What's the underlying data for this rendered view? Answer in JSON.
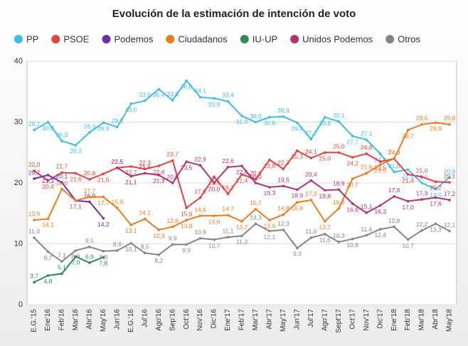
{
  "chart_data": {
    "type": "line",
    "title": "Evolución de la estimación de intención de voto",
    "categories": [
      "E.G.'15",
      "Ene'16",
      "Feb'16",
      "Mar'16",
      "Abr'16",
      "May'16",
      "Jun'16",
      "E.G.'16",
      "Jul'16",
      "Ago'16",
      "Sep'16",
      "Oct'16",
      "Nov'16",
      "Dic'16",
      "Ene'17",
      "Feb'17",
      "Mar'17",
      "Abr'17",
      "May'17",
      "Jun'17",
      "Jul'17",
      "Ago'17",
      "Sept'17",
      "Oct'17",
      "Nov'17",
      "Dic'17",
      "Ene'18",
      "Feb'18",
      "Mar'18",
      "Abr'18",
      "May'18"
    ],
    "ylim": [
      0,
      40
    ],
    "yticks": [
      0,
      10,
      20,
      30,
      40
    ],
    "grid": true,
    "series": [
      {
        "name": "PP",
        "color": "#3dbde9",
        "values": [
          28.7,
          30.0,
          26.9,
          26.2,
          28.3,
          29.9,
          29.2,
          33.0,
          33.5,
          35.4,
          33.6,
          36.8,
          34.1,
          33.9,
          33.4,
          31.0,
          30.0,
          30.8,
          30.9,
          29.9,
          27.2,
          30.8,
          30.1,
          27.7,
          27.1,
          24.8,
          21.8,
          22.2,
          20.0,
          19.0,
          20.9
        ],
        "value_labels": [
          "28,7",
          "30,0",
          "26,9",
          "26,2",
          "28,3",
          "29,9",
          "29,2",
          "33,0",
          "33,5",
          "35,4",
          "33,6",
          "36,8",
          "34,1",
          "33,9",
          "33,4",
          "31,0",
          "30,0",
          "30,8",
          "30,9",
          "29,9",
          "27,2",
          "30,8",
          "30,1",
          "27,7",
          "27,1",
          "24,8",
          "21,8",
          "22,2",
          "20,0",
          "19,0",
          "20,9"
        ]
      },
      {
        "name": "PSOE",
        "color": "#e8403c",
        "values": [
          22.0,
          20.4,
          21.7,
          21.6,
          20.6,
          21.5,
          22.5,
          22.7,
          22.3,
          22.8,
          23.7,
          15.9,
          17.6,
          21.0,
          18.2,
          21.4,
          20.6,
          23.8,
          22.3,
          25.3,
          24.1,
          25.0,
          25.0,
          24.2,
          24.8,
          23.5,
          24.0,
          21.4,
          21.0,
          20.2,
          20.1
        ],
        "value_labels": [
          "22,0",
          "20,4",
          "21,7",
          "21,6",
          "20,6",
          "21,5",
          "22,5",
          "22,7",
          "22,3",
          "22,8",
          "23,7",
          "15,9",
          "17,6",
          "21,0",
          "18,2",
          "21,4",
          "20,6",
          "23,8",
          "22,3",
          "25,3",
          "24,1",
          "25,0",
          "25,0",
          "24,2",
          "24,8",
          "23,5",
          "24,0",
          "21,4",
          "21,0",
          "20,2",
          "20,1"
        ]
      },
      {
        "name": "Podemos",
        "color": "#6b2fa8",
        "values": [
          20.7,
          21.3,
          20.1,
          17.1,
          16.9,
          14.2,
          null,
          null,
          null,
          null,
          null,
          null,
          null,
          null,
          null,
          null,
          null,
          null,
          null,
          null,
          null,
          null,
          null,
          null,
          null,
          null,
          null,
          null,
          null,
          null,
          null
        ],
        "value_labels": [
          "20,7",
          "21,3",
          "20,1",
          "17,1",
          "16,9",
          "14,2",
          null,
          null,
          null,
          null,
          null,
          null,
          null,
          null,
          null,
          null,
          null,
          null,
          null,
          null,
          null,
          null,
          null,
          null,
          null,
          null,
          null,
          null,
          null,
          null,
          null
        ]
      },
      {
        "name": "Ciudadanos",
        "color": "#f07b1c",
        "values": [
          13.9,
          14.1,
          19.0,
          17.1,
          17.7,
          17.7,
          15.9,
          13.1,
          14.1,
          12.3,
          12.8,
          13.9,
          14.6,
          14.6,
          14.7,
          13.7,
          15.7,
          13.9,
          14.8,
          16.8,
          17.2,
          13.7,
          15.8,
          20.7,
          21.6,
          23.0,
          24.0,
          28.7,
          29.6,
          29.9,
          29.6
        ],
        "value_labels": [
          "13,9",
          "14,1",
          "19,0",
          "17,1",
          "17,7",
          "17,7",
          "15,9",
          "13,1",
          "14,1",
          "12,3",
          "12,8",
          "13,9",
          "14,6",
          "14,6",
          "14,7",
          "13,7",
          "15,7",
          "13,9",
          "14,8",
          "16,8",
          "17,2",
          "13,7",
          "15,8",
          "20,7",
          "21,6",
          "23,0",
          "24,0",
          "28,7",
          "29,6",
          "29,9",
          "29,6"
        ]
      },
      {
        "name": "IU-UP",
        "color": "#2e8c5a",
        "values": [
          3.7,
          4.8,
          5.1,
          7.9,
          6.9,
          7.8,
          null,
          null,
          null,
          null,
          null,
          null,
          null,
          null,
          null,
          null,
          null,
          null,
          null,
          null,
          null,
          null,
          null,
          null,
          null,
          null,
          null,
          null,
          null,
          null,
          null
        ],
        "value_labels": [
          "3,7",
          "4,8",
          "5,1",
          "7,9",
          "6,9",
          "7,8",
          null,
          null,
          null,
          null,
          null,
          null,
          null,
          null,
          null,
          null,
          null,
          null,
          null,
          null,
          null,
          null,
          null,
          null,
          null,
          null,
          null,
          null,
          null,
          null,
          null
        ]
      },
      {
        "name": "Unidos Podemos",
        "color": "#b2326f",
        "values": [
          null,
          null,
          null,
          null,
          null,
          null,
          22.5,
          21.1,
          21.6,
          21.3,
          20.0,
          23.5,
          22.9,
          20.0,
          22.6,
          22.8,
          20.0,
          19.3,
          19.5,
          18.9,
          20.4,
          18.8,
          18.9,
          16.6,
          15.1,
          16.3,
          17.8,
          17.0,
          17.3,
          17.6,
          17.2
        ],
        "value_labels": [
          null,
          null,
          null,
          null,
          null,
          null,
          "22,5",
          "21,1",
          "21,6",
          "21,3",
          "20,0",
          "23,5",
          "22,9",
          "20,0",
          "22,6",
          "22,8",
          "20,0",
          "19,3",
          "19,5",
          "18,9",
          "20,4",
          "18,8",
          "18,9",
          "16,6",
          "15,1",
          "16,3",
          "17,8",
          "17,0",
          "17,3",
          "17,6",
          "17,2"
        ]
      },
      {
        "name": "Otros",
        "color": "#858585",
        "values": [
          11.0,
          8.7,
          7.1,
          8.9,
          9.5,
          8.8,
          8.9,
          10.1,
          8.5,
          8.2,
          9.9,
          9.9,
          10.9,
          10.7,
          11.1,
          11.3,
          13.3,
          12.1,
          12.3,
          9.3,
          11.0,
          11.6,
          10.3,
          10.8,
          11.4,
          12.4,
          12.8,
          10.7,
          12.2,
          13.3,
          12.1
        ],
        "value_labels": [
          "11,0",
          "8,7",
          "7,1",
          "8,9",
          "9,5",
          "8,8",
          "8,9",
          "10,1",
          "8,5",
          "8,2",
          "9,9",
          "9,9",
          "10,9",
          "10,7",
          "11,1",
          "11,3",
          "13,3",
          "12,1",
          "12,3",
          "9,3",
          "11,0",
          "11,6",
          "10,3",
          "10,8",
          "11,4",
          "12,4",
          "12,8",
          "10,7",
          "12,2",
          "13,3",
          "12,1"
        ]
      }
    ]
  }
}
